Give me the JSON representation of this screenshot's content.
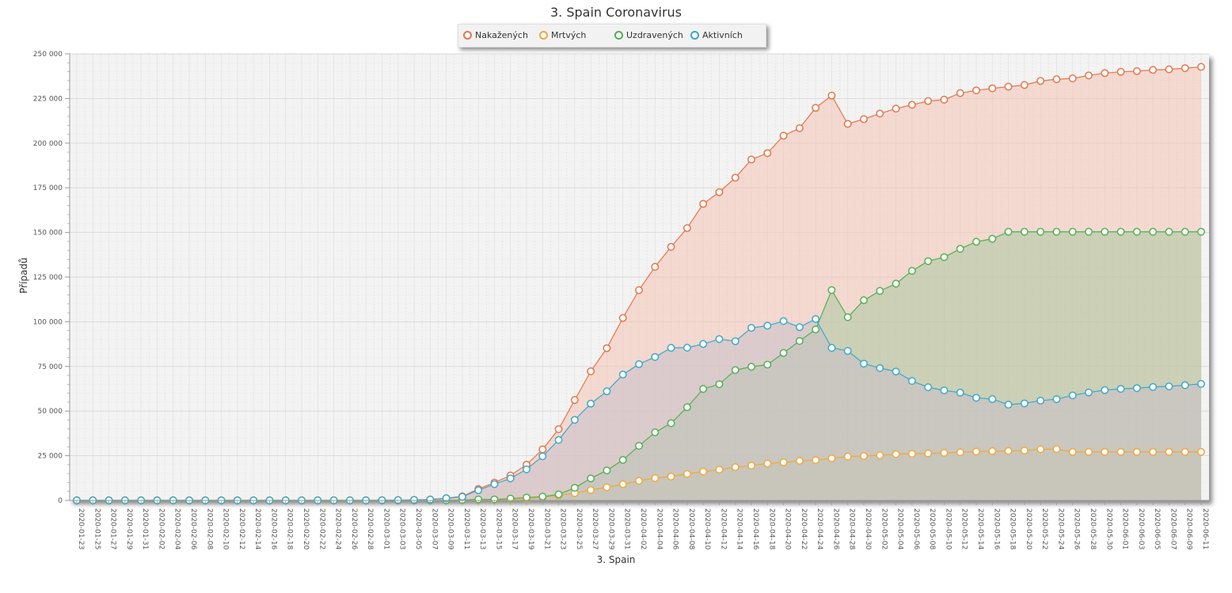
{
  "chart_data": {
    "type": "area",
    "title": "3. Spain Coronavirus",
    "xlabel": "3. Spain",
    "ylabel": "Případů",
    "ylim": [
      0,
      250000
    ],
    "y_ticks": [
      "250 000",
      "225 000",
      "200 000",
      "175 000",
      "150 000",
      "125 000",
      "100 000",
      "75 000",
      "50 000",
      "25 000",
      "0"
    ],
    "x": [
      "2020-01-23",
      "2020-01-25",
      "2020-01-27",
      "2020-01-29",
      "2020-01-31",
      "2020-02-02",
      "2020-02-04",
      "2020-02-06",
      "2020-02-08",
      "2020-02-10",
      "2020-02-12",
      "2020-02-14",
      "2020-02-16",
      "2020-02-18",
      "2020-02-20",
      "2020-02-22",
      "2020-02-24",
      "2020-02-26",
      "2020-02-28",
      "2020-03-01",
      "2020-03-03",
      "2020-03-05",
      "2020-03-07",
      "2020-03-09",
      "2020-03-11",
      "2020-03-13",
      "2020-03-15",
      "2020-03-17",
      "2020-03-19",
      "2020-03-21",
      "2020-03-23",
      "2020-03-25",
      "2020-03-27",
      "2020-03-29",
      "2020-03-31",
      "2020-04-02",
      "2020-04-04",
      "2020-04-06",
      "2020-04-08",
      "2020-04-10",
      "2020-04-12",
      "2020-04-14",
      "2020-04-16",
      "2020-04-18",
      "2020-04-20",
      "2020-04-22",
      "2020-04-24",
      "2020-04-26",
      "2020-04-28",
      "2020-04-30",
      "2020-05-02",
      "2020-05-04",
      "2020-05-06",
      "2020-05-08",
      "2020-05-10",
      "2020-05-12",
      "2020-05-14",
      "2020-05-16",
      "2020-05-18",
      "2020-05-20",
      "2020-05-22",
      "2020-05-24",
      "2020-05-26",
      "2020-05-28",
      "2020-05-30",
      "2020-06-01",
      "2020-06-03",
      "2020-06-05",
      "2020-06-07",
      "2020-06-09",
      "2020-06-11"
    ],
    "grid": true,
    "legend_position": "top-center",
    "series": [
      {
        "name": "Nakažených",
        "color": "#e8744a",
        "fill": "#f2c3b3",
        "values": [
          0,
          0,
          0,
          0,
          0,
          0,
          0,
          0,
          0,
          0,
          0,
          0,
          0,
          0,
          0,
          0,
          0,
          0,
          0,
          84,
          165,
          261,
          500,
          1231,
          2277,
          6391,
          9942,
          13910,
          19980,
          28572,
          39885,
          56188,
          72248,
          85195,
          102136,
          117710,
          130759,
          141942,
          152446,
          166019,
          172541,
          180659,
          190839,
          194416,
          204178,
          208389,
          219764,
          226629,
          210773,
          213435,
          216582,
          219329,
          221447,
          223578,
          224350,
          228030,
          229540,
          230698,
          231606,
          232555,
          234824,
          235772,
          236259,
          237906,
          239228,
          239932,
          240326,
          240978,
          241310,
          241966,
          242707
        ]
      },
      {
        "name": "Mrtvých",
        "color": "#f0a73c",
        "fill": "#e8d0a0",
        "values": [
          0,
          0,
          0,
          0,
          0,
          0,
          0,
          0,
          0,
          0,
          0,
          0,
          0,
          0,
          0,
          0,
          0,
          0,
          0,
          0,
          2,
          3,
          10,
          30,
          84,
          195,
          342,
          598,
          1002,
          1756,
          2696,
          4089,
          5812,
          7340,
          9053,
          10935,
          12418,
          13341,
          14792,
          16081,
          17209,
          18579,
          19478,
          20639,
          21282,
          22157,
          22524,
          23521,
          24543,
          24824,
          25264,
          25857,
          26070,
          26299,
          26621,
          26920,
          27321,
          27563,
          27650,
          27888,
          28628,
          28752,
          27117,
          27121,
          27125,
          27127,
          27128,
          27133,
          27135,
          27136,
          27136
        ]
      },
      {
        "name": "Uzdravených",
        "color": "#52b052",
        "fill": "#a9c9a0",
        "values": [
          0,
          0,
          0,
          0,
          0,
          0,
          0,
          0,
          0,
          0,
          0,
          0,
          0,
          0,
          0,
          0,
          0,
          0,
          0,
          2,
          2,
          2,
          30,
          32,
          183,
          517,
          530,
          1028,
          1588,
          2125,
          3355,
          7015,
          12285,
          16780,
          22647,
          30513,
          38080,
          43208,
          52165,
          62391,
          65042,
          72963,
          74797,
          75991,
          82514,
          89250,
          95708,
          117727,
          102548,
          112050,
          117248,
          121343,
          128511,
          133952,
          136166,
          140823,
          144783,
          146446,
          150376,
          150376,
          150376,
          150376,
          150376,
          150376,
          150376,
          150376,
          150376,
          150376,
          150376,
          150376,
          150376
        ]
      },
      {
        "name": "Aktivních",
        "color": "#3ca8c8",
        "fill": "#c8c0c8",
        "values": [
          0,
          0,
          0,
          0,
          0,
          0,
          0,
          0,
          0,
          0,
          0,
          0,
          0,
          0,
          0,
          0,
          0,
          0,
          0,
          82,
          161,
          256,
          460,
          1169,
          2010,
          5679,
          9070,
          12284,
          17390,
          24691,
          33834,
          45084,
          54151,
          61075,
          70436,
          76262,
          80261,
          85393,
          85489,
          87547,
          90290,
          89117,
          96564,
          97786,
          100382,
          96982,
          101532,
          85381,
          83682,
          76561,
          74070,
          72129,
          66866,
          63327,
          61563,
          60287,
          57436,
          56689,
          53580,
          54291,
          55820,
          56644,
          58766,
          60409,
          61727,
          62429,
          62822,
          63490,
          63819,
          64474,
          65215
        ]
      }
    ]
  }
}
